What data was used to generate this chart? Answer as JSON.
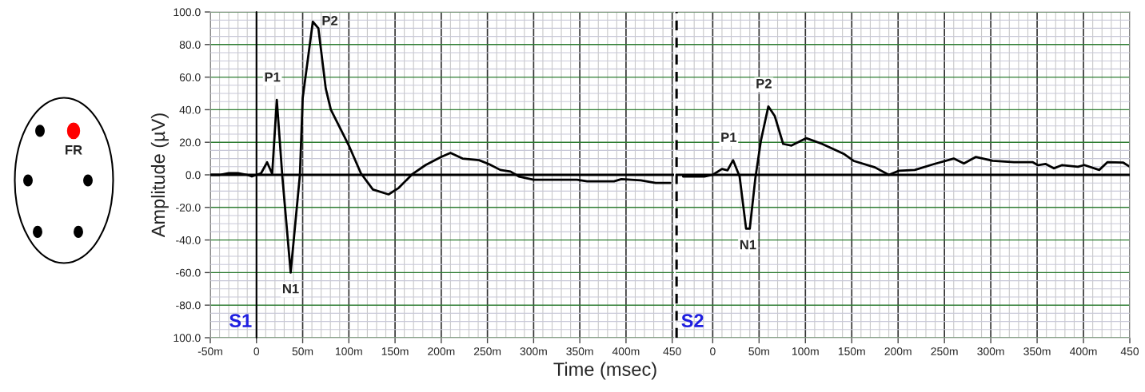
{
  "chart_data": [
    {
      "type": "other",
      "annotations": [
        "FR"
      ]
    },
    {
      "type": "line",
      "ylabel": "Amplitude (µV)",
      "xlabel": "Time (msec)",
      "xlim": [
        -50,
        452
      ],
      "ylim": [
        -100,
        100
      ],
      "xticks": [
        {
          "value": -50,
          "label": "-50m"
        },
        0,
        {
          "value": 50,
          "label": "50m"
        },
        {
          "value": 100,
          "label": "100m"
        },
        {
          "value": 150,
          "label": "150m"
        },
        {
          "value": 200,
          "label": "200m"
        },
        {
          "value": 250,
          "label": "250m"
        },
        {
          "value": 300,
          "label": "300m"
        },
        {
          "value": 350,
          "label": "350m"
        },
        {
          "value": 400,
          "label": "400m"
        },
        450
      ],
      "yticks": [
        {
          "value": -100,
          "label": "100.0"
        },
        {
          "value": -80,
          "label": "-80.0"
        },
        {
          "value": -60,
          "label": "-60.0"
        },
        {
          "value": -40,
          "label": "-40.0"
        },
        {
          "value": -20,
          "label": "-20.0"
        },
        {
          "value": 0,
          "label": "0.0"
        },
        {
          "value": 20,
          "label": "20.0"
        },
        {
          "value": 40,
          "label": "40.0"
        },
        {
          "value": 60,
          "label": "60.0"
        },
        {
          "value": 80,
          "label": "80.0"
        },
        {
          "value": 100,
          "label": "100.0"
        }
      ],
      "grid": true,
      "series": [
        {
          "color": "#000000",
          "x": [
            -50,
            -40,
            -30,
            -20,
            -10,
            -5,
            0,
            5,
            11.5,
            17,
            22,
            28,
            37,
            47,
            50,
            61,
            67,
            75,
            80.5,
            92,
            100,
            113,
            126,
            143,
            154,
            169,
            183,
            200,
            210,
            223,
            241,
            252,
            264,
            275,
            284,
            300,
            347,
            358,
            387,
            395,
            416,
            432,
            448
          ],
          "values": [
            0,
            0,
            1,
            1,
            0,
            -1,
            0,
            1,
            7.7,
            0.6,
            46,
            -1,
            -60,
            0,
            47,
            94,
            90,
            53,
            40,
            27,
            18,
            1,
            -9,
            -12,
            -8,
            0.6,
            6,
            11,
            13.5,
            10,
            9,
            6.5,
            3,
            2,
            -1,
            -3,
            -3,
            -4,
            -4,
            -2.6,
            -3.4,
            -5,
            -5
          ]
        }
      ],
      "ref_lines": [
        {
          "axis": "y",
          "value": 0,
          "color": "#000000"
        },
        {
          "axis": "x",
          "value": 0,
          "label": "S1",
          "color": "#000000",
          "line_style": "solid"
        }
      ],
      "annotations": [
        {
          "text": "P1",
          "x": 22,
          "y": 46
        },
        {
          "text": "N1",
          "x": 37,
          "y": -60
        },
        {
          "text": "P2",
          "x": 61,
          "y": 94
        }
      ]
    },
    {
      "type": "line",
      "tick_labels": "x",
      "xlim": [
        -39,
        450
      ],
      "ylim": [
        -100,
        100
      ],
      "xticks": [
        0,
        {
          "value": 50,
          "label": "50m"
        },
        {
          "value": 100,
          "label": "100m"
        },
        {
          "value": 150,
          "label": "150m"
        },
        {
          "value": 200,
          "label": "200m"
        },
        {
          "value": 250,
          "label": "250m"
        },
        {
          "value": 300,
          "label": "300m"
        },
        {
          "value": 350,
          "label": "350m"
        },
        {
          "value": 400,
          "label": "400m"
        },
        450
      ],
      "yticks": [
        -100,
        -80,
        -60,
        -40,
        -20,
        0,
        20,
        40,
        60,
        80,
        100
      ],
      "grid": true,
      "series": [
        {
          "color": "#000000",
          "x": [
            -32,
            -9,
            0,
            10,
            16,
            22,
            29,
            36,
            40,
            46,
            52,
            60,
            67,
            76,
            85,
            101,
            118,
            141,
            152,
            175,
            190,
            201,
            218,
            238,
            260,
            271,
            284,
            302,
            325,
            345,
            351,
            359,
            368,
            377,
            394,
            401,
            417,
            426,
            443,
            450
          ],
          "values": [
            -1,
            -1,
            0,
            3.6,
            2.8,
            9,
            -1,
            -33,
            -33,
            -2,
            21,
            42,
            36,
            19,
            18,
            22.5,
            19,
            13,
            8.6,
            4.6,
            0,
            2.5,
            3,
            6.5,
            10,
            7,
            11,
            8.6,
            7.8,
            7.8,
            5.9,
            6.7,
            4,
            6,
            5,
            6,
            3,
            7.8,
            7.5,
            5
          ]
        }
      ],
      "ref_lines": [
        {
          "axis": "y",
          "value": 0,
          "color": "#000000"
        },
        {
          "axis": "x",
          "value": -39,
          "label": "S2",
          "color": "#000000",
          "line_style": "dashed"
        }
      ],
      "annotations": [
        {
          "text": "P1",
          "x": 22,
          "y": 9
        },
        {
          "text": "N1",
          "x": 38,
          "y": -33
        },
        {
          "text": "P2",
          "x": 60,
          "y": 42
        }
      ]
    }
  ]
}
